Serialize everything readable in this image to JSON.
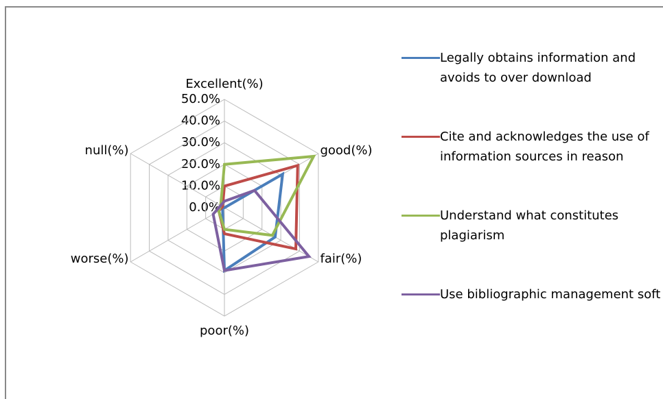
{
  "chart_data": {
    "type": "radar",
    "categories": [
      "Excellent(%)",
      "good(%)",
      "fair(%)",
      "poor(%)",
      "worse(%)",
      "null(%)"
    ],
    "ylim": [
      0,
      50
    ],
    "yticks": [
      {
        "value": 0,
        "label": "0.0%"
      },
      {
        "value": 10,
        "label": "10.0%"
      },
      {
        "value": 20,
        "label": "20.0%"
      },
      {
        "value": 30,
        "label": "30.0%"
      },
      {
        "value": 40,
        "label": "40.0%"
      },
      {
        "value": 50,
        "label": "50.0%"
      }
    ],
    "grid": true,
    "legend": "right",
    "series": [
      {
        "name": "Legally obtains information and avoids to over download",
        "color": "#4a7ebb",
        "values": [
          0,
          31,
          27,
          29,
          1,
          1
        ]
      },
      {
        "name": "Cite and acknowledges the use of information sources in reason",
        "color": "#be4b48",
        "values": [
          10,
          39,
          38,
          12,
          3,
          1
        ]
      },
      {
        "name": "Understand what constitutes plagiarism",
        "color": "#98b954",
        "values": [
          20,
          47.5,
          25.5,
          10,
          3,
          2
        ]
      },
      {
        "name": "Use bibliographic management soft",
        "color": "#7d60a0",
        "values": [
          3,
          16,
          45,
          29,
          6,
          2
        ]
      }
    ]
  }
}
